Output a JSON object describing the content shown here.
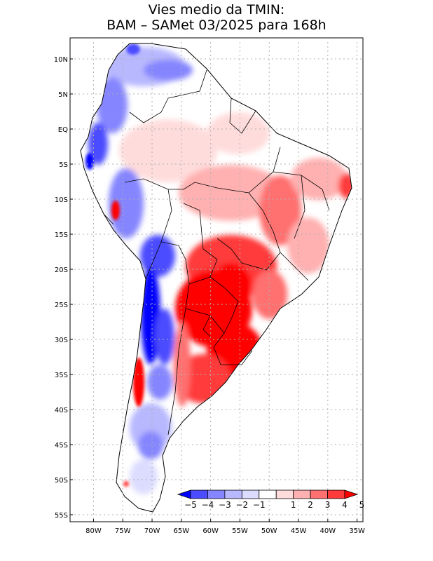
{
  "header": {
    "title_line1": "Vies medio da TMIN:",
    "title_line2": "BAM – SAMet 03/2025  para 168h"
  },
  "map": {
    "lat_range": [
      -56,
      13
    ],
    "lon_range": [
      -84,
      -34
    ],
    "lat_ticks": [
      {
        "lat": 10,
        "label": "10N"
      },
      {
        "lat": 5,
        "label": "5N"
      },
      {
        "lat": 0,
        "label": "EQ"
      },
      {
        "lat": -5,
        "label": "5S"
      },
      {
        "lat": -10,
        "label": "10S"
      },
      {
        "lat": -15,
        "label": "15S"
      },
      {
        "lat": -20,
        "label": "20S"
      },
      {
        "lat": -25,
        "label": "25S"
      },
      {
        "lat": -30,
        "label": "30S"
      },
      {
        "lat": -35,
        "label": "35S"
      },
      {
        "lat": -40,
        "label": "40S"
      },
      {
        "lat": -45,
        "label": "45S"
      },
      {
        "lat": -50,
        "label": "50S"
      },
      {
        "lat": -55,
        "label": "55S"
      }
    ],
    "lon_ticks": [
      {
        "lon": -80,
        "label": "80W"
      },
      {
        "lon": -75,
        "label": "75W"
      },
      {
        "lon": -70,
        "label": "70W"
      },
      {
        "lon": -65,
        "label": "65W"
      },
      {
        "lon": -60,
        "label": "60W"
      },
      {
        "lon": -55,
        "label": "55W"
      },
      {
        "lon": -50,
        "label": "50W"
      },
      {
        "lon": -45,
        "label": "45W"
      },
      {
        "lon": -40,
        "label": "40W"
      },
      {
        "lon": -35,
        "label": "35W"
      }
    ]
  },
  "colorbar": {
    "labels": [
      "−5",
      "−4",
      "−3",
      "−2",
      "−1",
      "1",
      "2",
      "3",
      "4",
      "5"
    ],
    "colors": [
      "#0000ff",
      "#4c4cff",
      "#8585ff",
      "#b8b8ff",
      "#dcdcff",
      "#ffffff",
      "#ffdcdc",
      "#ffb0b0",
      "#ff7070",
      "#ff3a3a",
      "#ff0000"
    ],
    "label_positions": [
      0,
      1,
      2,
      3,
      4,
      6,
      7,
      8,
      9,
      10
    ]
  }
}
